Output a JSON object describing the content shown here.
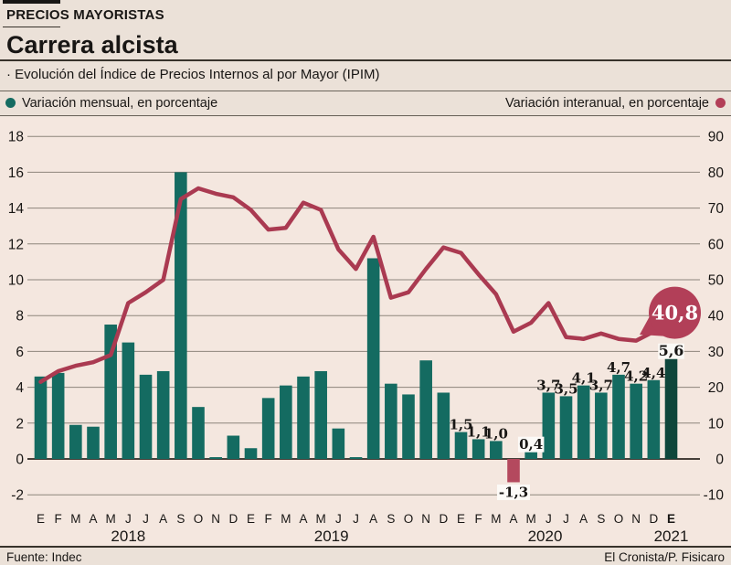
{
  "header": {
    "kicker": "PRECIOS MAYORISTAS",
    "title": "Carrera alcista",
    "subtitle": "· Evolución del Índice de Precios Internos al por Mayor (IPIM)"
  },
  "legend": {
    "left_label": "Variación mensual, en porcentaje",
    "right_label": "Variación interanual, en porcentaje"
  },
  "footer": {
    "source": "Fuente: Indec",
    "credit": "El Cronista/P. Fisicaro"
  },
  "chart_data": {
    "type": "bar+line",
    "months": [
      "E",
      "F",
      "M",
      "A",
      "M",
      "J",
      "J",
      "A",
      "S",
      "O",
      "N",
      "D",
      "E",
      "F",
      "M",
      "A",
      "M",
      "J",
      "J",
      "A",
      "S",
      "O",
      "N",
      "D",
      "E",
      "F",
      "M",
      "A",
      "M",
      "J",
      "J",
      "A",
      "S",
      "O",
      "N",
      "D",
      "E"
    ],
    "bold_month_index": 36,
    "years": [
      {
        "label": "2018",
        "month_index": 5
      },
      {
        "label": "2019",
        "month_index": 16.6
      },
      {
        "label": "2020",
        "month_index": 28.8
      },
      {
        "label": "2021",
        "month_index": 36
      }
    ],
    "series": [
      {
        "name": "Variación mensual, en porcentaje",
        "type": "bar",
        "axis": "left",
        "values": [
          4.6,
          4.8,
          1.9,
          1.8,
          7.5,
          6.5,
          4.7,
          4.9,
          16.0,
          2.9,
          0.1,
          1.3,
          0.6,
          3.4,
          4.1,
          4.6,
          4.9,
          1.7,
          0.1,
          11.2,
          4.2,
          3.6,
          5.5,
          3.7,
          1.5,
          1.1,
          1.0,
          -1.3,
          0.4,
          3.7,
          3.5,
          4.1,
          3.7,
          4.7,
          4.2,
          4.4,
          5.6
        ]
      },
      {
        "name": "Variación interanual, en porcentaje",
        "type": "line",
        "axis": "right",
        "values": [
          21.5,
          24.5,
          26,
          27,
          29,
          43.5,
          46.5,
          50,
          72.5,
          75.5,
          74,
          73,
          69.5,
          64,
          64.5,
          71.5,
          69.5,
          58.5,
          53,
          62,
          45,
          46.5,
          53,
          59,
          57.5,
          51.5,
          46,
          35.5,
          38,
          43.5,
          34,
          33.5,
          35,
          33.5,
          33,
          35.5,
          40.8
        ]
      }
    ],
    "bar_labels": [
      {
        "month_index": 24,
        "text": "1,5",
        "boxed": false,
        "below": false
      },
      {
        "month_index": 25,
        "text": "1,1",
        "boxed": false,
        "below": false
      },
      {
        "month_index": 26,
        "text": "1,0",
        "boxed": false,
        "below": false
      },
      {
        "month_index": 27,
        "text": "-1,3",
        "boxed": true,
        "below": true
      },
      {
        "month_index": 28,
        "text": "0,4",
        "boxed": true,
        "below": false
      },
      {
        "month_index": 29,
        "text": "3,7",
        "boxed": false,
        "below": false
      },
      {
        "month_index": 30,
        "text": "3,5",
        "boxed": false,
        "below": false
      },
      {
        "month_index": 31,
        "text": "4,1",
        "boxed": false,
        "below": false
      },
      {
        "month_index": 32,
        "text": "3,7",
        "boxed": false,
        "below": false
      },
      {
        "month_index": 33,
        "text": "4,7",
        "boxed": false,
        "below": false
      },
      {
        "month_index": 34,
        "text": "4,2",
        "boxed": false,
        "below": false
      },
      {
        "month_index": 35,
        "text": "4,4",
        "boxed": false,
        "below": false
      },
      {
        "month_index": 36,
        "text": "5,6",
        "boxed": true,
        "below": false,
        "emphasis": true
      }
    ],
    "badge": {
      "text": "40,8",
      "value": 40.8,
      "month_index": 36
    },
    "left_axis": {
      "ticks": [
        18,
        16,
        14,
        12,
        10,
        8,
        6,
        4,
        2,
        0,
        -2
      ]
    },
    "right_axis": {
      "ticks": [
        90,
        80,
        70,
        60,
        50,
        40,
        30,
        20,
        10,
        0,
        -10
      ]
    },
    "colors": {
      "background": "#ebe1d8",
      "plot_background": "#f4e7df",
      "bar": "#146b61",
      "bar_highlight": "#0e463b",
      "bar_negative": "#b4495e",
      "line": "#aa3a51",
      "badge": "#b23f58",
      "badge_text": "#ffffff",
      "grid": "#8d857c",
      "zero_line": "#46403a",
      "text": "#181614",
      "label_box": "#fcfaf7"
    }
  }
}
